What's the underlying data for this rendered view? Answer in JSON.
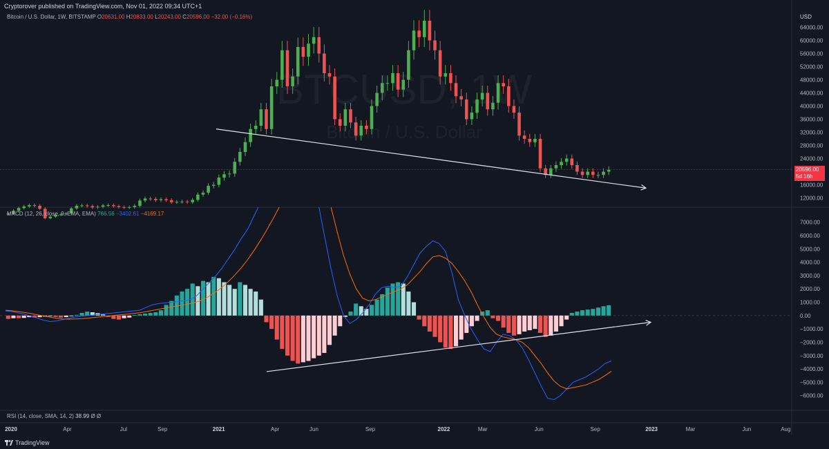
{
  "header": {
    "published": "Cryptorover published on TradingView.com, Nov 01, 2022 09:34 UTC+1"
  },
  "symbol": {
    "name": "Bitcoin / U.S. Dollar, 1W, BITSTAMP",
    "o_label": "O",
    "o_value": "20631.00",
    "h_label": "H",
    "h_value": "20833.00",
    "l_label": "L",
    "l_value": "20243.00",
    "c_label": "C",
    "c_value": "20596.00",
    "change": "−32.00 (−0.16%)"
  },
  "watermark": {
    "ticker": "BTCUSD, 1W",
    "name": "Bitcoin / U.S. Dollar"
  },
  "price_axis": {
    "unit": "USD",
    "last_price": "20596.00",
    "countdown": "5d 16h"
  },
  "macd_legend": {
    "name": "MACD (12, 26, close, 9, EMA, EMA)",
    "histogram": "766.56",
    "macd": "−3402.61",
    "signal": "−4169.17"
  },
  "rsi_legend": {
    "name": "RSI (14, close, SMA, 14, 2)",
    "value": "38.99",
    "extra": "Ø Ø"
  },
  "footer": {
    "brand": "TradingView"
  },
  "colors": {
    "background": "#131722",
    "up": "#26a69a",
    "up_candle": "#4caf50",
    "down": "#ef5350",
    "hist_up_light": "#b2dfdb",
    "hist_down_light": "#ffcdd2",
    "macd_line": "#2962ff",
    "signal_line": "#ff6d00",
    "trendline": "#e0e3eb",
    "last_price": "#f23645"
  },
  "chart_data": [
    {
      "type": "candlestick",
      "title": "Bitcoin / U.S. Dollar, 1W, BITSTAMP",
      "ylabel": "USD",
      "ylim": [
        10000,
        66000
      ],
      "y_ticks": [
        "12000.00",
        "16000.00",
        "20000.00",
        "24000.00",
        "28000.00",
        "32000.00",
        "36000.00",
        "40000.00",
        "44000.00",
        "48000.00",
        "52000.00",
        "56000.00",
        "60000.00",
        "64000.00"
      ],
      "x_ticks": [
        "2020",
        "Apr",
        "Jul",
        "Sep",
        "2021",
        "Apr",
        "Jun",
        "Sep",
        "2022",
        "Mar",
        "Jun",
        "Sep",
        "2023",
        "Mar",
        "Jun",
        "Aug"
      ],
      "weekly_closes_approx": [
        7200,
        8100,
        8900,
        9400,
        9800,
        9600,
        8700,
        5800,
        6300,
        6800,
        7000,
        7300,
        8800,
        9600,
        9700,
        9500,
        9100,
        9300,
        9700,
        9800,
        9500,
        9200,
        9100,
        9200,
        9600,
        11200,
        11800,
        11700,
        11300,
        11600,
        11300,
        10700,
        10800,
        10900,
        10700,
        11400,
        13000,
        13600,
        15700,
        16000,
        18200,
        19200,
        19400,
        23000,
        26000,
        29000,
        33000,
        34000,
        39000,
        33000,
        46000,
        48000,
        57000,
        46000,
        49000,
        58000,
        55000,
        59000,
        61000,
        56000,
        50000,
        49000,
        36000,
        34000,
        39000,
        35000,
        31000,
        34000,
        33000,
        40000,
        44000,
        47000,
        47000,
        50000,
        45000,
        48000,
        57000,
        63000,
        61000,
        66000,
        60000,
        57000,
        49000,
        50000,
        47000,
        43000,
        42000,
        36000,
        38000,
        42000,
        44000,
        39000,
        41000,
        47000,
        46000,
        40000,
        38000,
        31000,
        30000,
        29000,
        30000,
        21000,
        19000,
        21000,
        22000,
        23000,
        24000,
        22000,
        20000,
        19000,
        20000,
        19000,
        19000,
        20000,
        20600
      ],
      "trendline": {
        "from": {
          "x": "Oct 2020",
          "y": 33000
        },
        "to": {
          "x": "Dec 2022",
          "y": 15000
        }
      }
    },
    {
      "type": "macd",
      "title": "MACD (12, 26, close, 9, EMA, EMA)",
      "ylim": [
        -7000,
        7500
      ],
      "y_ticks": [
        "7000.00",
        "6000.00",
        "5000.00",
        "4000.00",
        "3000.00",
        "2000.00",
        "1000.00",
        "0.00",
        "−1000.00",
        "−2000.00",
        "−3000.00",
        "−4000.00",
        "−5000.00",
        "−6000.00"
      ],
      "series": [
        {
          "name": "MACD",
          "values_approx": [
            350,
            300,
            200,
            100,
            -50,
            -200,
            -350,
            -450,
            -400,
            -300,
            -200,
            -100,
            -50,
            0,
            50,
            100,
            150,
            200,
            250,
            300,
            350,
            400,
            600,
            800,
            900,
            950,
            1000,
            1050,
            1100,
            1200,
            1500,
            2000,
            2500,
            3000,
            3600,
            4300,
            5000,
            5800,
            6500,
            7500,
            8500,
            9500,
            11000,
            12000,
            12500,
            13000,
            12600,
            11600,
            10500,
            8500,
            6000,
            3600,
            1500,
            0,
            -600,
            -300,
            200,
            800,
            1600,
            2100,
            2200,
            2100,
            2200,
            2900,
            3800,
            4700,
            5200,
            5600,
            5400,
            4800,
            3200,
            1200,
            0,
            -1000,
            -1800,
            -2500,
            -2700,
            -2000,
            -1400,
            -1500,
            -1800,
            -2400,
            -3300,
            -4300,
            -5300,
            -6200,
            -6300,
            -6000,
            -5500,
            -5000,
            -4800,
            -4600,
            -4300,
            -4000,
            -3600,
            -3400
          ]
        },
        {
          "name": "Signal",
          "values_approx": [
            400,
            360,
            300,
            230,
            150,
            60,
            -30,
            -120,
            -200,
            -250,
            -270,
            -260,
            -230,
            -190,
            -140,
            -90,
            -40,
            10,
            60,
            110,
            160,
            210,
            290,
            380,
            470,
            560,
            650,
            730,
            810,
            900,
            1020,
            1210,
            1470,
            1780,
            2140,
            2570,
            3060,
            3600,
            4210,
            4900,
            5650,
            6450,
            7300,
            8200,
            9000,
            9700,
            10500,
            11000,
            11100,
            10600,
            9700,
            8200,
            6300,
            4500,
            3100,
            2000,
            1300,
            1100,
            1200,
            1400,
            1600,
            1800,
            2000,
            2300,
            2800,
            3300,
            3900,
            4400,
            4500,
            4300,
            3900,
            3300,
            2600,
            1800,
            800,
            -100,
            -900,
            -1400,
            -1600,
            -1700,
            -1800,
            -2000,
            -2400,
            -3000,
            -3600,
            -4300,
            -4900,
            -5300,
            -5500,
            -5400,
            -5300,
            -5200,
            -5000,
            -4800,
            -4500,
            -4170
          ]
        },
        {
          "name": "Histogram",
          "values_approx": [
            -250,
            -200,
            -200,
            -180,
            -120,
            -150,
            -120,
            -80,
            -50,
            -100,
            -150,
            -120,
            -50,
            50,
            200,
            300,
            250,
            180,
            80,
            -100,
            -250,
            -300,
            -200,
            -150,
            50,
            100,
            150,
            200,
            250,
            400,
            800,
            1100,
            1500,
            1800,
            2000,
            2400,
            2200,
            2600,
            2500,
            2900,
            2800,
            2500,
            2300,
            2000,
            2500,
            2300,
            2000,
            1800,
            1200,
            -500,
            -1000,
            -1800,
            -2500,
            -3000,
            -3400,
            -3600,
            -3500,
            -3400,
            -3200,
            -3000,
            -2800,
            -2200,
            -1500,
            -800,
            -100,
            300,
            900,
            700,
            500,
            800,
            1200,
            1600,
            2100,
            2400,
            2500,
            2400,
            1800,
            1000,
            -300,
            -800,
            -1200,
            -1600,
            -2000,
            -2400,
            -2500,
            -2300,
            -1800,
            -1300,
            -800,
            -400,
            300,
            400,
            -200,
            -400,
            -900,
            -1300,
            -1500,
            -1400,
            -1200,
            -1100,
            -1000,
            -1300,
            -1600,
            -1500,
            -1200,
            -800,
            -300,
            200,
            300,
            400,
            450,
            500,
            600,
            700,
            770
          ]
        }
      ],
      "trendline": {
        "from": {
          "x": "Apr 2021",
          "y": -4200
        },
        "to": {
          "x": "Dec 2022",
          "y": -500
        }
      }
    }
  ]
}
